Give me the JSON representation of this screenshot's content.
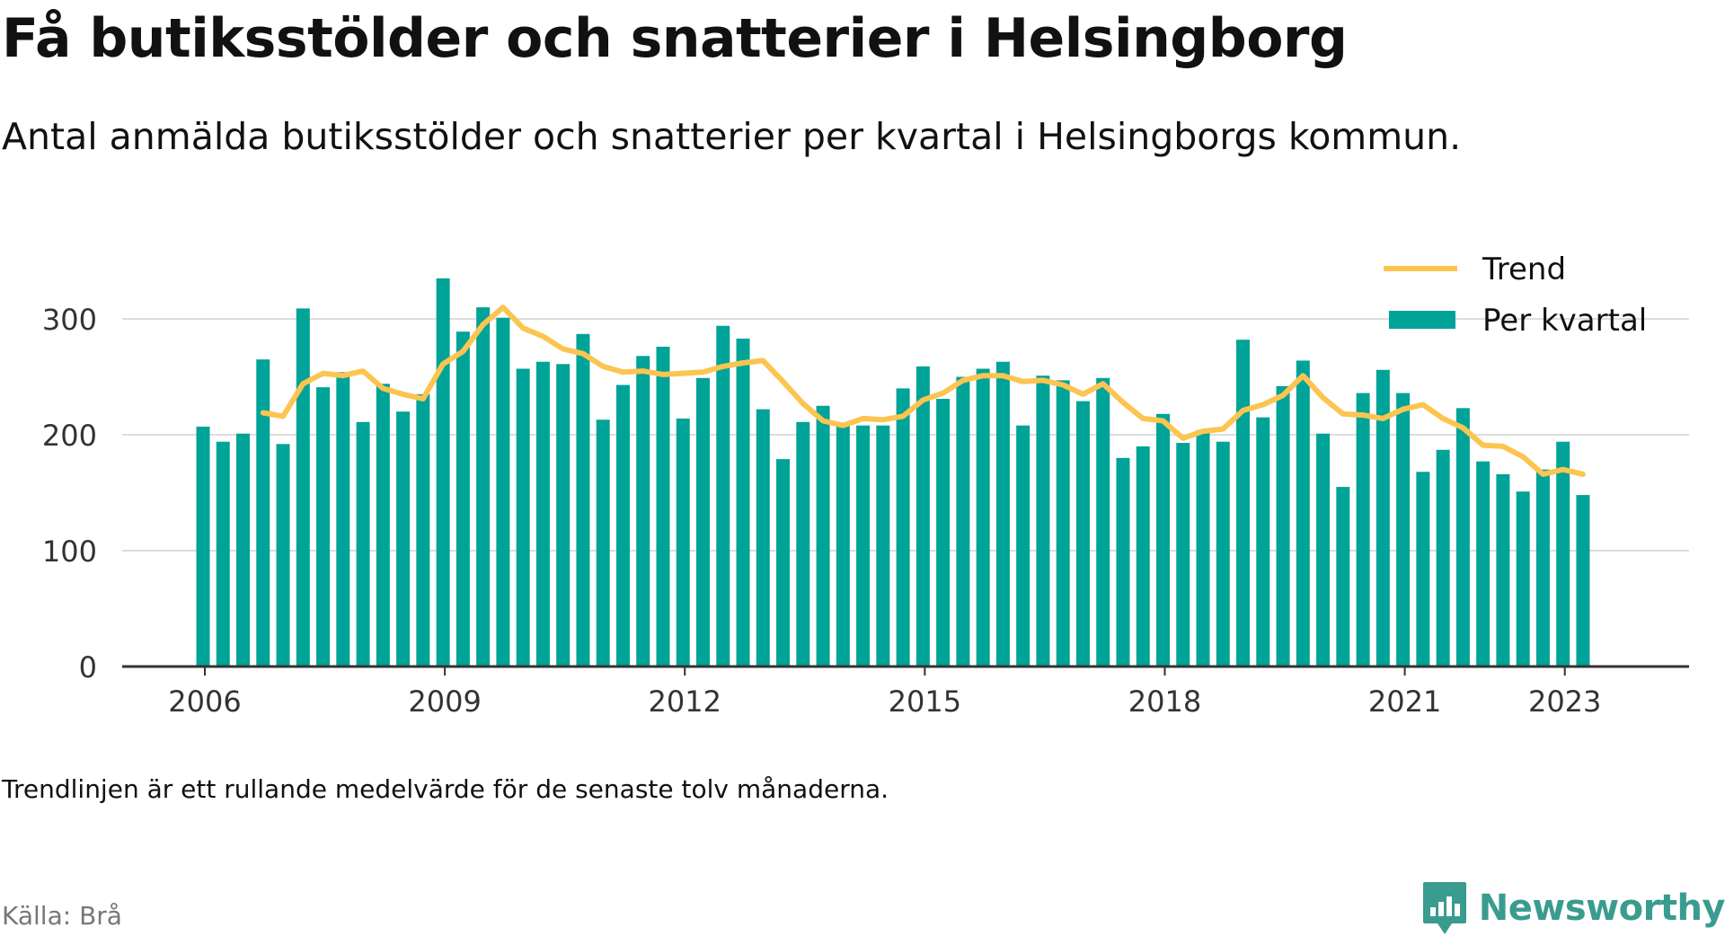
{
  "header": {
    "title": "Få butiksstölder och snatterier i Helsingborg",
    "subtitle": "Antal anmälda butiksstölder och snatterier per kvartal i Helsingborgs kommun."
  },
  "footer": {
    "note": "Trendlinjen är ett rullande medelvärde för de senaste tolv månaderna.",
    "source": "Källa: Brå",
    "brand_name": "Newsworthy",
    "brand_icon": "bar-chart-speech-bubble-icon"
  },
  "colors": {
    "bar": "#00a397",
    "trend": "#fcc450",
    "grid": "#dddddd",
    "axis": "#333333",
    "brand": "#3a9b8f"
  },
  "chart_data": {
    "type": "bar",
    "x_unit": "quarter",
    "x_start": "2006 Q1",
    "xticks": [
      "2006",
      "2009",
      "2012",
      "2015",
      "2018",
      "2021",
      "2023"
    ],
    "yticks": [
      0,
      100,
      200,
      300
    ],
    "ylim": [
      0,
      350
    ],
    "grid": true,
    "legend_position": "top-right",
    "series": [
      {
        "name": "Per kvartal",
        "type": "bar",
        "values": [
          207,
          194,
          201,
          265,
          192,
          309,
          241,
          254,
          211,
          244,
          220,
          235,
          335,
          289,
          310,
          301,
          257,
          263,
          261,
          287,
          213,
          243,
          268,
          276,
          214,
          249,
          294,
          283,
          222,
          179,
          211,
          225,
          208,
          208,
          208,
          240,
          259,
          231,
          250,
          257,
          263,
          208,
          251,
          247,
          229,
          249,
          180,
          190,
          218,
          193,
          204,
          194,
          282,
          215,
          242,
          264,
          201,
          155,
          236,
          256,
          236,
          168,
          187,
          223,
          177,
          166,
          151,
          170,
          194,
          148
        ]
      },
      {
        "name": "Trend",
        "type": "line",
        "x_offset": 3,
        "values": [
          219,
          216,
          244,
          253,
          251,
          255,
          240,
          235,
          231,
          261,
          272,
          295,
          310,
          292,
          285,
          274,
          270,
          259,
          254,
          255,
          252,
          253,
          254,
          259,
          262,
          264,
          246,
          227,
          212,
          208,
          214,
          213,
          216,
          230,
          236,
          247,
          251,
          251,
          246,
          247,
          243,
          235,
          244,
          228,
          214,
          212,
          197,
          203,
          205,
          221,
          226,
          234,
          251,
          232,
          218,
          217,
          214,
          222,
          226,
          214,
          206,
          191,
          190,
          181,
          166,
          170,
          166
        ]
      }
    ]
  }
}
